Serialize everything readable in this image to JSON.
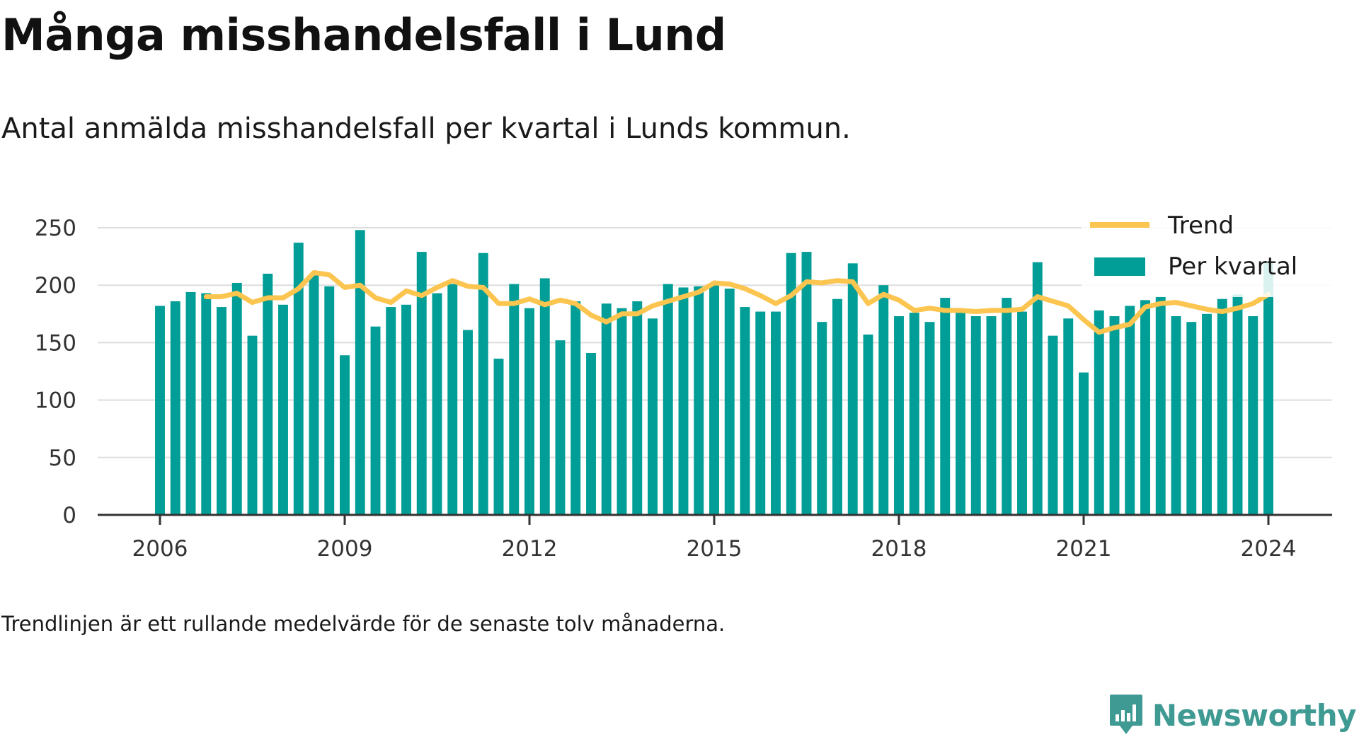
{
  "header": {
    "title": "Många misshandelsfall i Lund",
    "subtitle": "Antal anmälda misshandelsfall per kvartal i Lunds kommun."
  },
  "footnote": "Trendlinjen är ett rullande medelvärde för de senaste tolv månaderna.",
  "brand": {
    "name": "Newsworthy",
    "icon": "newsworthy-logo-icon",
    "color": "#3e9a92"
  },
  "colors": {
    "bars": "#009e96",
    "trend": "#fbc550",
    "grid": "#dddddd",
    "axis": "#333333"
  },
  "chart_data": {
    "type": "bar",
    "title": "Många misshandelsfall i Lund",
    "subtitle": "Antal anmälda misshandelsfall per kvartal i Lunds kommun.",
    "xlabel": "",
    "ylabel": "",
    "ylim": [
      0,
      250
    ],
    "yticks": [
      0,
      50,
      100,
      150,
      200,
      250
    ],
    "xticks": [
      "2006",
      "2009",
      "2012",
      "2015",
      "2018",
      "2021",
      "2024"
    ],
    "xtick_positions": [
      2006,
      2009,
      2012,
      2015,
      2018,
      2021,
      2024
    ],
    "grid": true,
    "legend_position": "top-right",
    "legend": [
      "Trend",
      "Per kvartal"
    ],
    "x": [
      2006.0,
      2006.25,
      2006.5,
      2006.75,
      2007.0,
      2007.25,
      2007.5,
      2007.75,
      2008.0,
      2008.25,
      2008.5,
      2008.75,
      2009.0,
      2009.25,
      2009.5,
      2009.75,
      2010.0,
      2010.25,
      2010.5,
      2010.75,
      2011.0,
      2011.25,
      2011.5,
      2011.75,
      2012.0,
      2012.25,
      2012.5,
      2012.75,
      2013.0,
      2013.25,
      2013.5,
      2013.75,
      2014.0,
      2014.25,
      2014.5,
      2014.75,
      2015.0,
      2015.25,
      2015.5,
      2015.75,
      2016.0,
      2016.25,
      2016.5,
      2016.75,
      2017.0,
      2017.25,
      2017.5,
      2017.75,
      2018.0,
      2018.25,
      2018.5,
      2018.75,
      2019.0,
      2019.25,
      2019.5,
      2019.75,
      2020.0,
      2020.25,
      2020.5,
      2020.75,
      2021.0,
      2021.25,
      2021.5,
      2021.75,
      2022.0,
      2022.25,
      2022.5,
      2022.75,
      2023.0,
      2023.25,
      2023.5,
      2023.75,
      2024.0
    ],
    "series": [
      {
        "name": "Per kvartal",
        "type": "bar",
        "values": [
          182,
          186,
          194,
          193,
          181,
          202,
          156,
          210,
          183,
          237,
          209,
          199,
          139,
          248,
          164,
          181,
          183,
          229,
          193,
          201,
          161,
          228,
          136,
          201,
          180,
          206,
          152,
          186,
          141,
          184,
          180,
          186,
          171,
          201,
          198,
          199,
          200,
          197,
          181,
          177,
          177,
          228,
          229,
          168,
          188,
          219,
          157,
          200,
          173,
          176,
          168,
          189,
          177,
          173,
          173,
          189,
          177,
          220,
          156,
          171,
          124,
          178,
          173,
          182,
          187,
          190,
          173,
          168,
          175,
          188,
          192,
          173,
          220
        ]
      },
      {
        "name": "Trend",
        "type": "line",
        "values": [
          null,
          null,
          null,
          190,
          190,
          193,
          185,
          189,
          189,
          197,
          211,
          209,
          198,
          200,
          189,
          185,
          195,
          191,
          198,
          204,
          199,
          198,
          184,
          184,
          188,
          183,
          187,
          184,
          174,
          168,
          175,
          175,
          182,
          186,
          190,
          194,
          202,
          201,
          197,
          191,
          184,
          191,
          203,
          202,
          204,
          203,
          184,
          192,
          187,
          178,
          180,
          178,
          178,
          177,
          178,
          178,
          179,
          190,
          186,
          182,
          170,
          159,
          163,
          166,
          181,
          184,
          185,
          182,
          179,
          177,
          180,
          184,
          192
        ]
      }
    ]
  }
}
